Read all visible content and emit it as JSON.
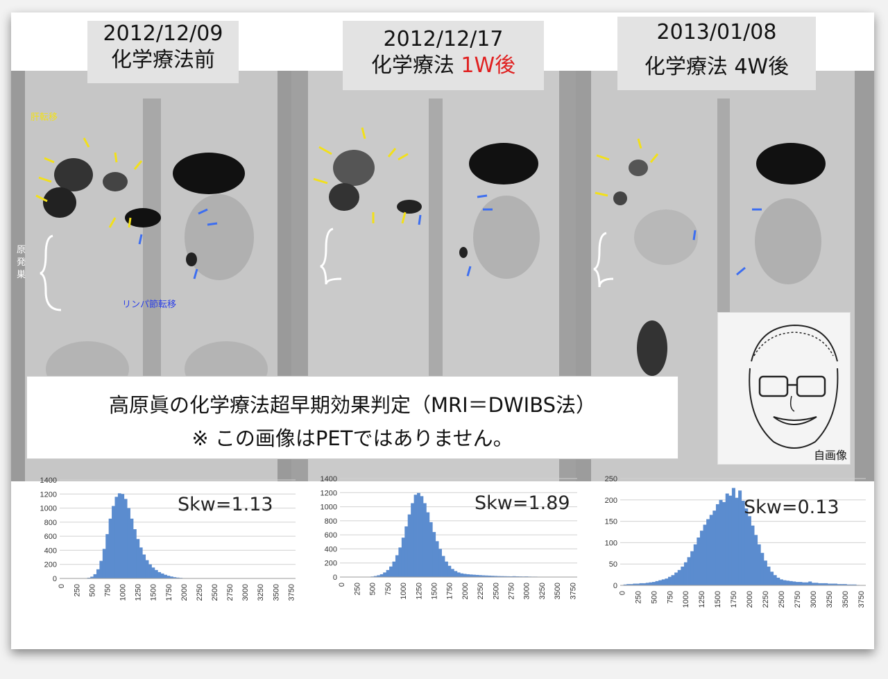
{
  "panels": [
    {
      "date": "2012/12/09",
      "treatment": "化学療法前",
      "highlight": ""
    },
    {
      "date": "2012/12/17",
      "treatment": "化学療法 ",
      "highlight": "1W後"
    },
    {
      "date": "2013/01/08",
      "treatment": "化学療法 4W後",
      "highlight": ""
    }
  ],
  "annotations": {
    "liver_metastasis": "肝転移",
    "primary_lesion": "原発巣",
    "lymph_node_metastasis": "リンパ節転移"
  },
  "caption": {
    "line1": "高原眞の化学療法超早期効果判定（MRI＝DWIBS法）",
    "line2": "※  この画像はPETではありません。"
  },
  "portrait_label": "自画像",
  "colors": {
    "bar": "#5b8ccf",
    "grid": "#d0d0d0",
    "arrow_yellow": "#f2e01a",
    "arrow_blue": "#3d6ef0",
    "highlight_red": "#e02020"
  },
  "chart_data": [
    {
      "type": "bar",
      "skw_label": "Skw=1.13",
      "ylim": [
        0,
        1400
      ],
      "yticks": [
        0,
        200,
        400,
        600,
        800,
        1000,
        1200,
        1400
      ],
      "xticks": [
        "0",
        "250",
        "500",
        "750",
        "1000",
        "1250",
        "1500",
        "1750",
        "2000",
        "2250",
        "2500",
        "2750",
        "3000",
        "3250",
        "3500",
        "3750"
      ],
      "x_range": [
        0,
        3850
      ],
      "bins": [
        [
          0,
          0
        ],
        [
          50,
          0
        ],
        [
          100,
          0
        ],
        [
          150,
          0
        ],
        [
          200,
          0
        ],
        [
          250,
          0
        ],
        [
          300,
          0
        ],
        [
          350,
          2
        ],
        [
          400,
          5
        ],
        [
          450,
          10
        ],
        [
          500,
          25
        ],
        [
          550,
          60
        ],
        [
          600,
          130
        ],
        [
          650,
          250
        ],
        [
          700,
          420
        ],
        [
          750,
          630
        ],
        [
          800,
          850
        ],
        [
          850,
          1030
        ],
        [
          900,
          1160
        ],
        [
          950,
          1210
        ],
        [
          1000,
          1200
        ],
        [
          1050,
          1130
        ],
        [
          1100,
          1000
        ],
        [
          1150,
          850
        ],
        [
          1200,
          700
        ],
        [
          1250,
          560
        ],
        [
          1300,
          440
        ],
        [
          1350,
          340
        ],
        [
          1400,
          260
        ],
        [
          1450,
          200
        ],
        [
          1500,
          155
        ],
        [
          1550,
          120
        ],
        [
          1600,
          90
        ],
        [
          1650,
          70
        ],
        [
          1700,
          52
        ],
        [
          1750,
          38
        ],
        [
          1800,
          27
        ],
        [
          1850,
          18
        ],
        [
          1900,
          12
        ],
        [
          1950,
          8
        ],
        [
          2000,
          5
        ],
        [
          2050,
          3
        ],
        [
          2100,
          2
        ],
        [
          2150,
          1
        ]
      ]
    },
    {
      "type": "bar",
      "skw_label": "Skw=1.89",
      "ylim": [
        0,
        1400
      ],
      "yticks": [
        0,
        200,
        400,
        600,
        800,
        1000,
        1200,
        1400
      ],
      "xticks": [
        "0",
        "250",
        "500",
        "750",
        "1000",
        "1250",
        "1500",
        "1750",
        "2000",
        "2250",
        "2500",
        "2750",
        "3000",
        "3250",
        "3500",
        "3750"
      ],
      "x_range": [
        0,
        3850
      ],
      "bins": [
        [
          0,
          0
        ],
        [
          50,
          0
        ],
        [
          100,
          0
        ],
        [
          150,
          0
        ],
        [
          200,
          0
        ],
        [
          250,
          0
        ],
        [
          300,
          0
        ],
        [
          350,
          0
        ],
        [
          400,
          2
        ],
        [
          450,
          4
        ],
        [
          500,
          8
        ],
        [
          550,
          15
        ],
        [
          600,
          25
        ],
        [
          650,
          40
        ],
        [
          700,
          65
        ],
        [
          750,
          100
        ],
        [
          800,
          150
        ],
        [
          850,
          220
        ],
        [
          900,
          310
        ],
        [
          950,
          420
        ],
        [
          1000,
          560
        ],
        [
          1050,
          720
        ],
        [
          1100,
          890
        ],
        [
          1150,
          1050
        ],
        [
          1200,
          1170
        ],
        [
          1250,
          1195
        ],
        [
          1300,
          1150
        ],
        [
          1350,
          1050
        ],
        [
          1400,
          920
        ],
        [
          1450,
          780
        ],
        [
          1500,
          640
        ],
        [
          1550,
          510
        ],
        [
          1600,
          400
        ],
        [
          1650,
          300
        ],
        [
          1700,
          220
        ],
        [
          1750,
          160
        ],
        [
          1800,
          115
        ],
        [
          1850,
          85
        ],
        [
          1900,
          65
        ],
        [
          1950,
          52
        ],
        [
          2000,
          45
        ],
        [
          2050,
          40
        ],
        [
          2100,
          36
        ],
        [
          2150,
          33
        ],
        [
          2200,
          30
        ],
        [
          2250,
          27
        ],
        [
          2300,
          24
        ],
        [
          2350,
          22
        ],
        [
          2400,
          20
        ],
        [
          2450,
          18
        ],
        [
          2500,
          16
        ],
        [
          2550,
          14
        ],
        [
          2600,
          13
        ],
        [
          2650,
          12
        ],
        [
          2700,
          11
        ],
        [
          2750,
          10
        ],
        [
          2800,
          12
        ],
        [
          2850,
          10
        ],
        [
          2900,
          9
        ],
        [
          2950,
          8
        ],
        [
          3000,
          9
        ],
        [
          3050,
          7
        ],
        [
          3100,
          6
        ],
        [
          3150,
          6
        ],
        [
          3200,
          5
        ],
        [
          3250,
          5
        ],
        [
          3300,
          4
        ],
        [
          3350,
          4
        ],
        [
          3400,
          3
        ],
        [
          3450,
          3
        ],
        [
          3500,
          2
        ],
        [
          3550,
          2
        ],
        [
          3600,
          2
        ],
        [
          3650,
          1
        ],
        [
          3700,
          1
        ]
      ]
    },
    {
      "type": "bar",
      "skw_label": "Skw=0.13",
      "ylim": [
        0,
        250
      ],
      "yticks": [
        0,
        50,
        100,
        150,
        200,
        250
      ],
      "xticks": [
        "0",
        "250",
        "500",
        "750",
        "1000",
        "1250",
        "1500",
        "1750",
        "2000",
        "2250",
        "2500",
        "2750",
        "3000",
        "3250",
        "3500",
        "3750"
      ],
      "x_range": [
        0,
        3850
      ],
      "bins": [
        [
          0,
          0
        ],
        [
          50,
          2
        ],
        [
          100,
          3
        ],
        [
          150,
          3
        ],
        [
          200,
          4
        ],
        [
          250,
          4
        ],
        [
          300,
          5
        ],
        [
          350,
          5
        ],
        [
          400,
          6
        ],
        [
          450,
          7
        ],
        [
          500,
          8
        ],
        [
          550,
          10
        ],
        [
          600,
          12
        ],
        [
          650,
          14
        ],
        [
          700,
          16
        ],
        [
          750,
          20
        ],
        [
          800,
          24
        ],
        [
          850,
          30
        ],
        [
          900,
          36
        ],
        [
          950,
          44
        ],
        [
          1000,
          54
        ],
        [
          1050,
          66
        ],
        [
          1100,
          80
        ],
        [
          1150,
          96
        ],
        [
          1200,
          112
        ],
        [
          1250,
          128
        ],
        [
          1300,
          142
        ],
        [
          1350,
          155
        ],
        [
          1400,
          165
        ],
        [
          1450,
          175
        ],
        [
          1500,
          190
        ],
        [
          1550,
          200
        ],
        [
          1600,
          195
        ],
        [
          1650,
          215
        ],
        [
          1700,
          210
        ],
        [
          1750,
          228
        ],
        [
          1800,
          205
        ],
        [
          1850,
          222
        ],
        [
          1900,
          198
        ],
        [
          1950,
          180
        ],
        [
          2000,
          162
        ],
        [
          2050,
          140
        ],
        [
          2100,
          118
        ],
        [
          2150,
          96
        ],
        [
          2200,
          76
        ],
        [
          2250,
          58
        ],
        [
          2300,
          44
        ],
        [
          2350,
          32
        ],
        [
          2400,
          24
        ],
        [
          2450,
          18
        ],
        [
          2500,
          14
        ],
        [
          2550,
          12
        ],
        [
          2600,
          11
        ],
        [
          2650,
          10
        ],
        [
          2700,
          9
        ],
        [
          2750,
          8
        ],
        [
          2800,
          8
        ],
        [
          2850,
          7
        ],
        [
          2900,
          7
        ],
        [
          2950,
          9
        ],
        [
          3000,
          6
        ],
        [
          3050,
          6
        ],
        [
          3100,
          5
        ],
        [
          3150,
          5
        ],
        [
          3200,
          5
        ],
        [
          3250,
          4
        ],
        [
          3300,
          4
        ],
        [
          3350,
          4
        ],
        [
          3400,
          3
        ],
        [
          3450,
          3
        ],
        [
          3500,
          3
        ],
        [
          3550,
          2
        ],
        [
          3600,
          2
        ],
        [
          3650,
          2
        ],
        [
          3700,
          1
        ]
      ]
    }
  ]
}
